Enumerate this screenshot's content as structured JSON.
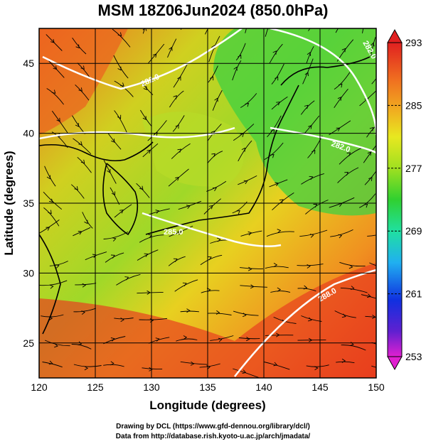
{
  "title": "MSM 18Z06Jun2024 (850.0hPa)",
  "map": {
    "x_axis": {
      "label": "Longitude (degrees)",
      "min": 120,
      "max": 150,
      "ticks": [
        120,
        125,
        130,
        135,
        140,
        145,
        150
      ]
    },
    "y_axis": {
      "label": "Latitude  (degrees)",
      "min": 22.5,
      "max": 47.5,
      "ticks": [
        25,
        30,
        35,
        40,
        45
      ]
    },
    "grid": true,
    "field": "temperature (K)",
    "contour_labels": [
      "282.0",
      "282.0",
      "282.0",
      "285.0",
      "288.0"
    ],
    "layers": [
      "temperature shading",
      "streamlines",
      "coastlines",
      "white isotherms"
    ]
  },
  "colorbar": {
    "min": 253,
    "max": 293,
    "tick_labels": [
      "293",
      "285",
      "277",
      "269",
      "261",
      "253"
    ],
    "tick_values": [
      293,
      285,
      277,
      269,
      261,
      253
    ],
    "colors": [
      "#e020d0",
      "#6020d0",
      "#1030e0",
      "#20b0f0",
      "#20e0a0",
      "#30d030",
      "#a0e020",
      "#e8e820",
      "#f0a020",
      "#f06020",
      "#e02020"
    ]
  },
  "credits": {
    "line1": "Drawing by DCL (https://www.gfd-dennou.org/library/dcl/)",
    "line2": "Data from http://database.rish.kyoto-u.ac.jp/arch/jmadata/"
  }
}
